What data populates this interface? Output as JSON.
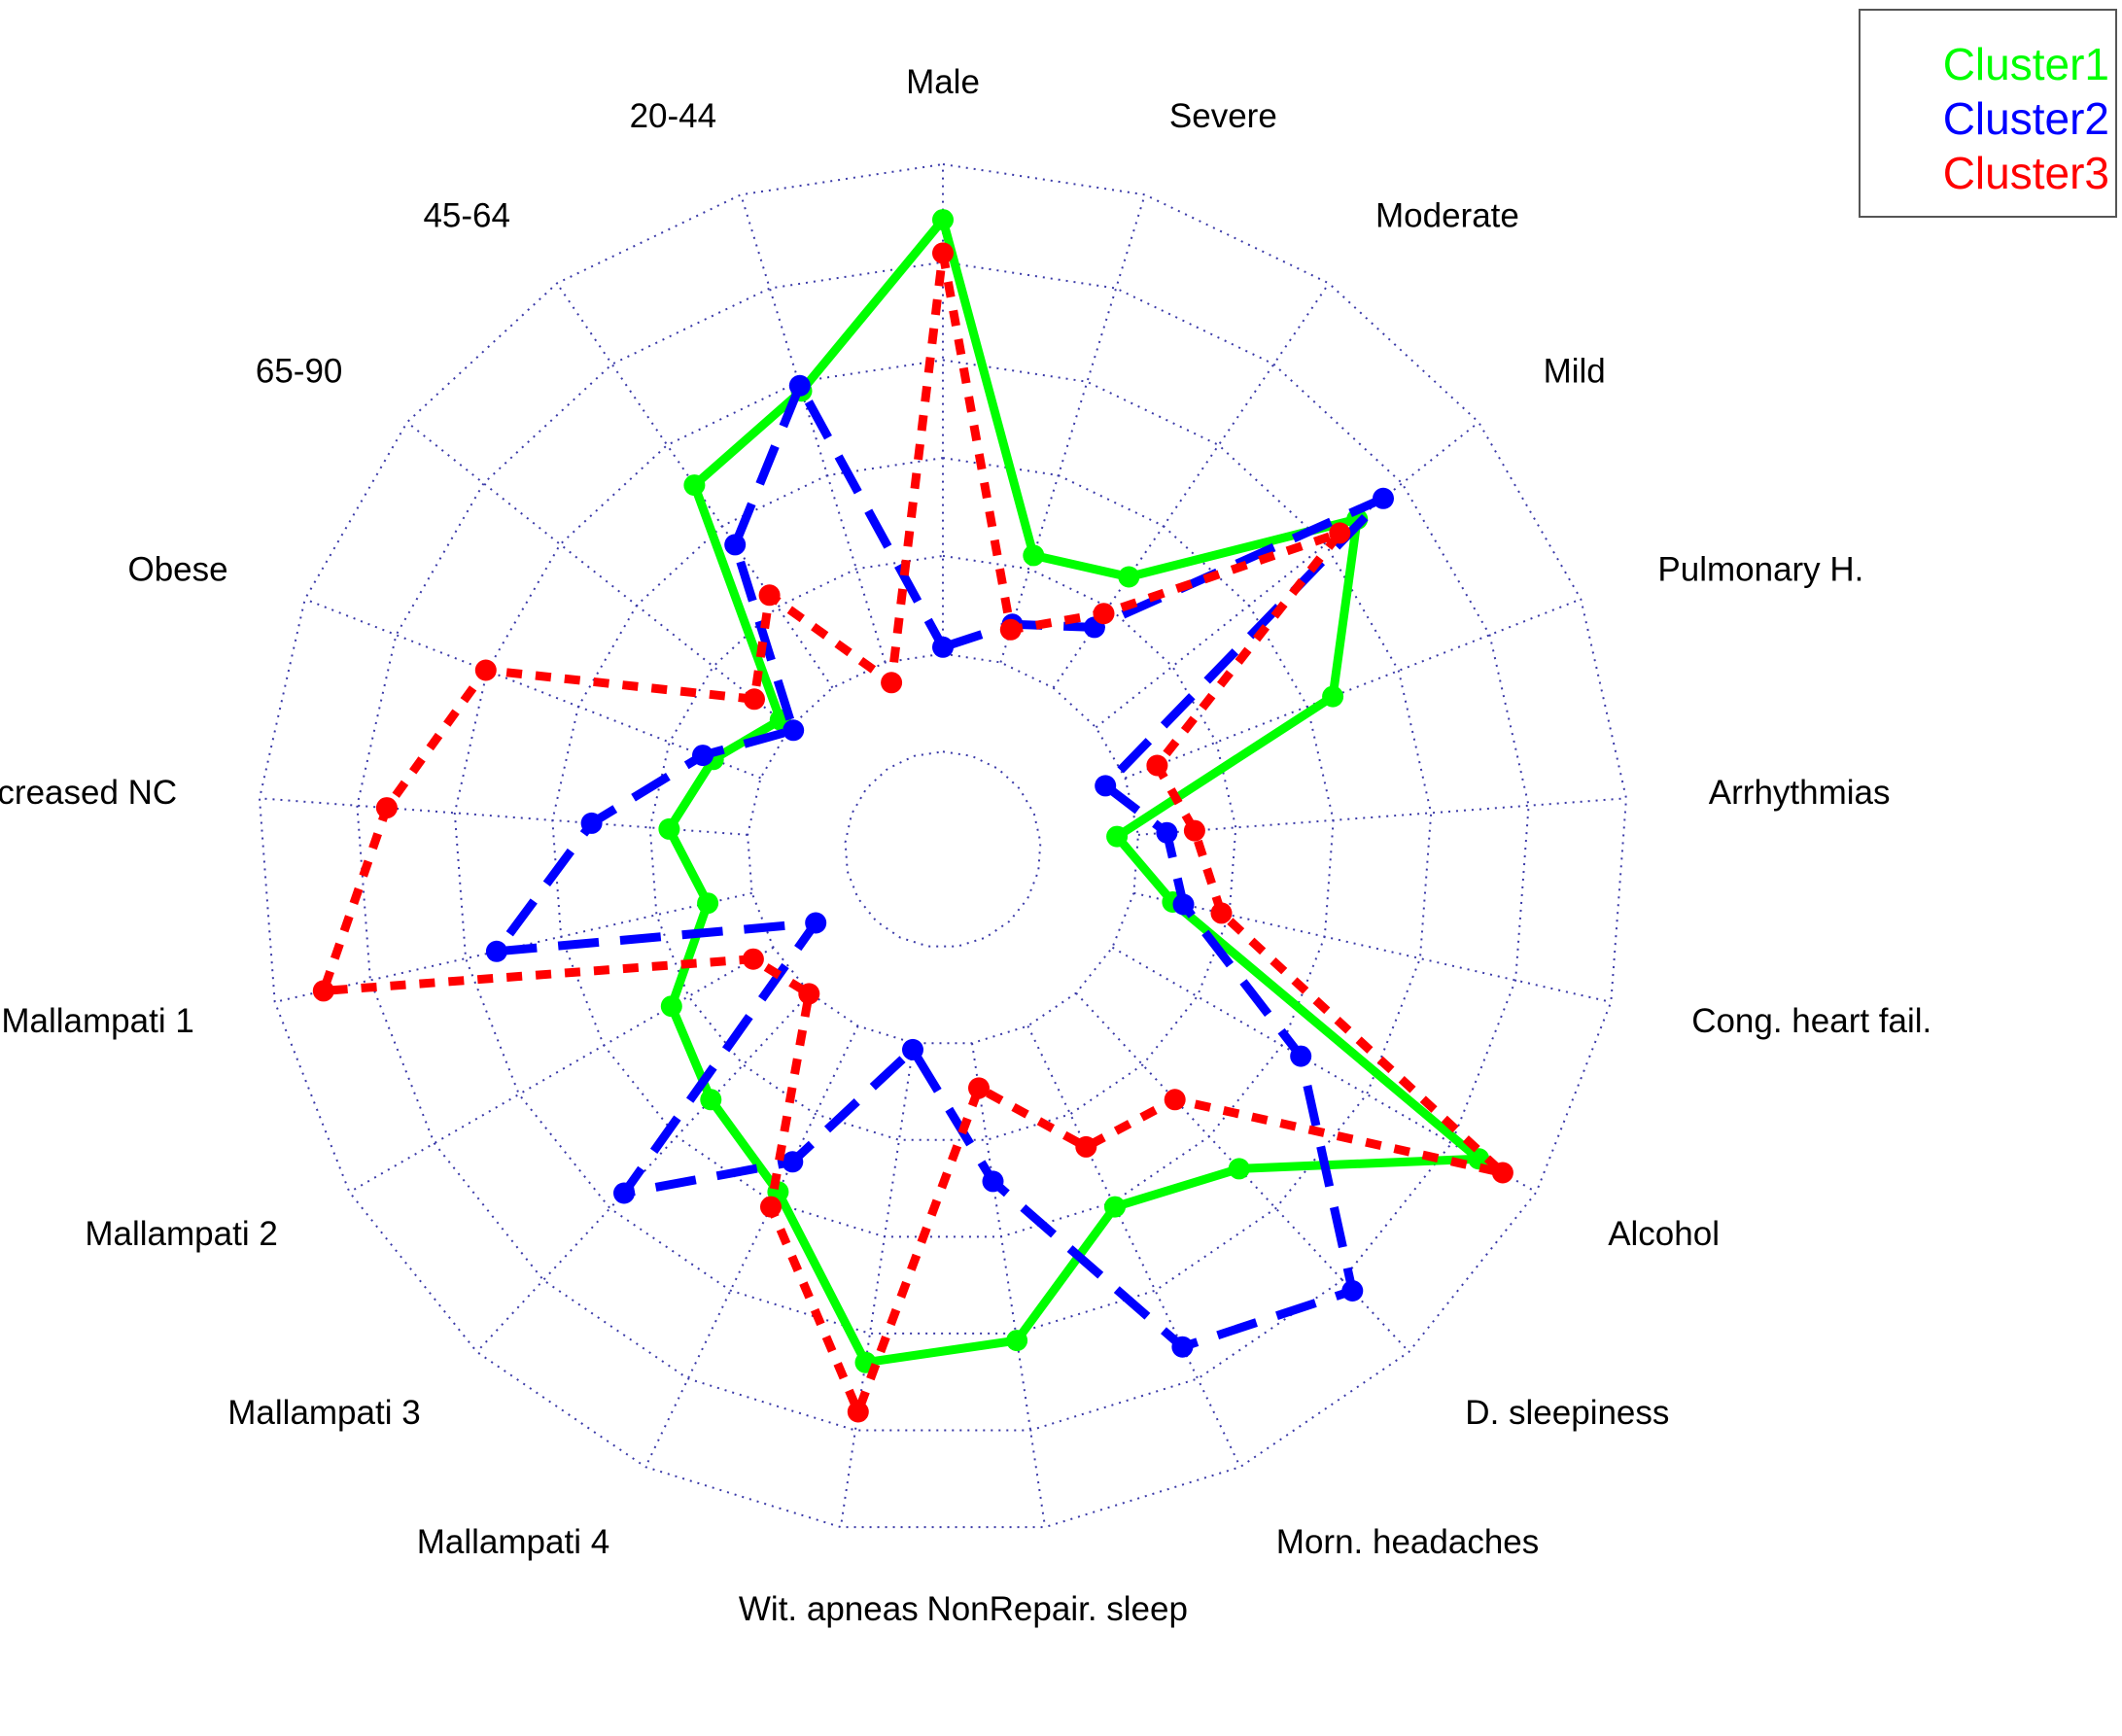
{
  "chart_data": {
    "type": "radar",
    "axes": [
      "Male",
      "Severe",
      "Moderate",
      "Mild",
      "Pulmonary H.",
      "Arrhythmias",
      "Cong. heart fail.",
      "Alcohol",
      "D. sleepiness",
      "Morn. headaches",
      "NonRepair. sleep",
      "Wit. apneas",
      "Mallampati 4",
      "Mallampati 3",
      "Mallampati 2",
      "Mallampati 1",
      "Increased NC",
      "Obese",
      "65-90",
      "45-64",
      "20-44"
    ],
    "rlim": [
      0,
      1
    ],
    "rings": 7,
    "hole_fraction": 0.19,
    "grid": true,
    "legend_position": "top-right",
    "series": [
      {
        "name": "Cluster1",
        "color": "#00ff00",
        "dash": "solid",
        "values": [
          0.9,
          0.32,
          0.36,
          0.72,
          0.52,
          0.08,
          0.19,
          0.88,
          0.55,
          0.48,
          0.66,
          0.7,
          0.45,
          0.38,
          0.33,
          0.2,
          0.26,
          0.21,
          0.14,
          0.56,
          0.63
        ]
      },
      {
        "name": "Cluster2",
        "color": "#0000ff",
        "dash": "long",
        "values": [
          0.13,
          0.19,
          0.25,
          0.78,
          0.08,
          0.17,
          0.21,
          0.51,
          0.85,
          0.76,
          0.37,
          0.13,
          0.39,
          0.61,
          0.03,
          0.59,
          0.4,
          0.23,
          0.11,
          0.43,
          0.64
        ]
      },
      {
        "name": "Cluster3",
        "color": "#ff0000",
        "dash": "short",
        "values": [
          0.84,
          0.18,
          0.28,
          0.68,
          0.18,
          0.22,
          0.28,
          0.93,
          0.38,
          0.36,
          0.2,
          0.79,
          0.48,
          0.12,
          0.16,
          0.91,
          0.77,
          0.65,
          0.2,
          0.32,
          0.08
        ]
      }
    ]
  }
}
